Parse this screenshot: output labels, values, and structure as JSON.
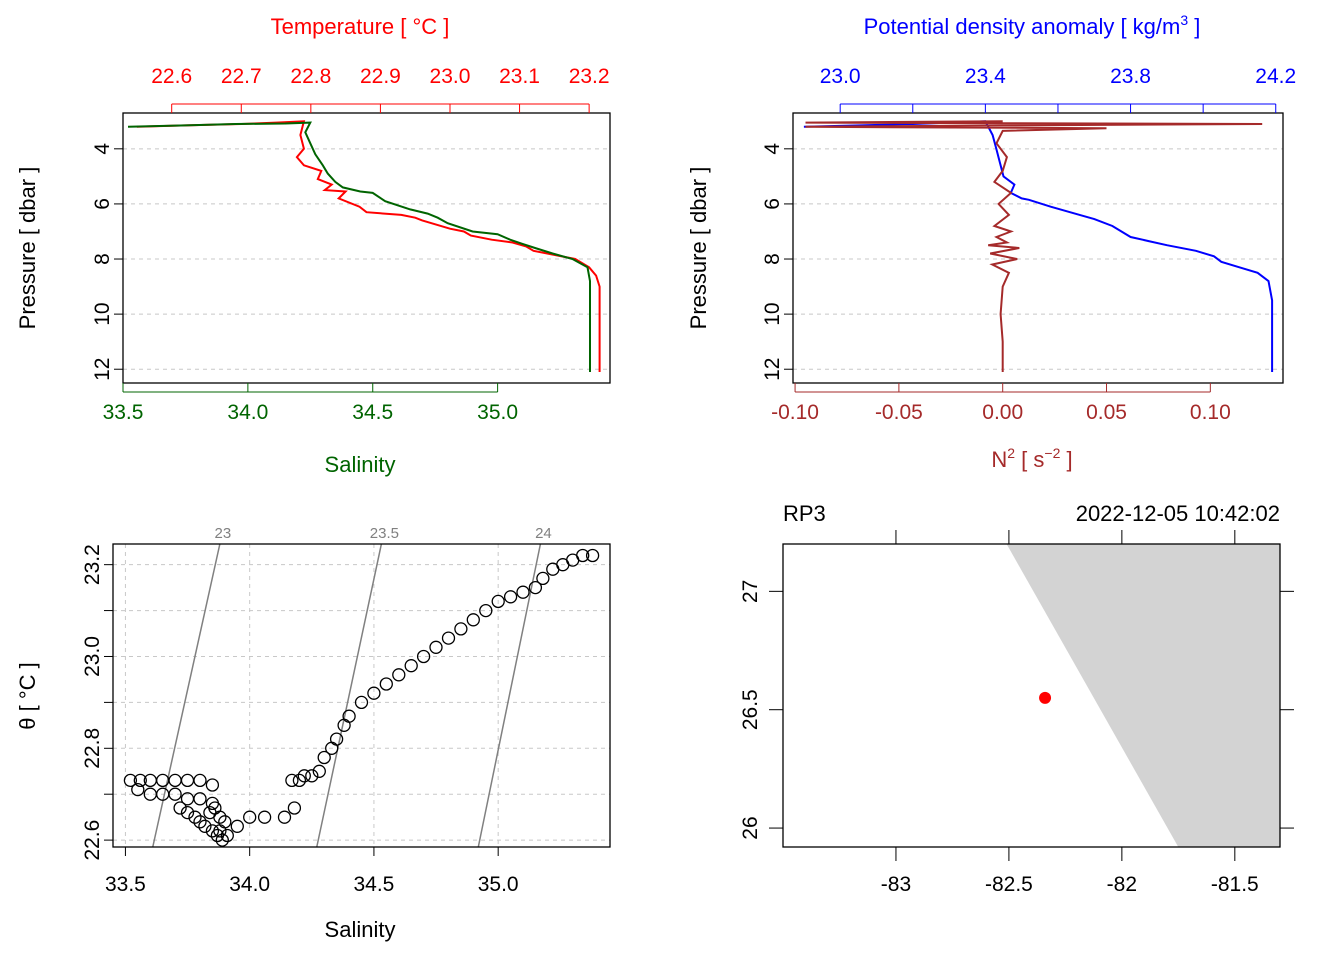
{
  "colors": {
    "temperature": "#ff0000",
    "salinity": "#006400",
    "density": "#0000ff",
    "n2": "#a52a2a",
    "axis": "#000000",
    "grid": "#c8c8c8",
    "isopycnal": "#808080",
    "land": "#d3d3d3",
    "station": "#ff0000"
  },
  "chart_data": [
    {
      "id": "ts_profile",
      "type": "line",
      "title": "",
      "top_axis": {
        "label": "Temperature [ °C ]",
        "ticks": [
          "22.6",
          "22.7",
          "22.8",
          "22.9",
          "23.0",
          "23.1",
          "23.2"
        ],
        "range": [
          22.53,
          23.23
        ]
      },
      "bottom_axis": {
        "label": "Salinity",
        "ticks": [
          "33.5",
          "34.0",
          "34.5",
          "35.0"
        ],
        "range": [
          33.5,
          35.45
        ]
      },
      "y_axis": {
        "label": "Pressure [ dbar ]",
        "ticks": [
          "4",
          "6",
          "8",
          "10",
          "12"
        ],
        "range": [
          12.5,
          2.7
        ],
        "inverted": true
      },
      "series": [
        {
          "name": "Temperature",
          "axis": "top",
          "color": "red",
          "x": [
            22.55,
            22.62,
            22.7,
            22.75,
            22.79,
            22.785,
            22.79,
            22.78,
            22.79,
            22.815,
            22.81,
            22.83,
            22.82,
            22.85,
            22.84,
            22.87,
            22.88,
            22.93,
            22.95,
            22.96,
            23.0,
            23.02,
            23.03,
            23.06,
            23.09,
            23.11,
            23.12,
            23.15,
            23.18,
            23.2,
            23.21,
            23.215,
            23.215,
            23.215
          ],
          "y": [
            3.2,
            3.15,
            3.1,
            3.05,
            3.0,
            3.5,
            4.0,
            4.3,
            4.6,
            4.8,
            5.1,
            5.3,
            5.5,
            5.55,
            5.8,
            6.1,
            6.3,
            6.4,
            6.5,
            6.6,
            6.9,
            7.0,
            7.15,
            7.3,
            7.4,
            7.55,
            7.7,
            7.85,
            8.0,
            8.3,
            8.6,
            9.0,
            10.5,
            12.1
          ]
        },
        {
          "name": "Salinity",
          "axis": "bottom",
          "color": "green",
          "x": [
            33.52,
            33.75,
            33.95,
            34.15,
            34.25,
            34.23,
            34.25,
            34.27,
            34.3,
            34.32,
            34.35,
            34.38,
            34.45,
            34.5,
            34.55,
            34.65,
            34.72,
            34.76,
            34.8,
            34.9,
            35.0,
            35.05,
            35.1,
            35.15,
            35.22,
            35.3,
            35.36,
            35.37,
            35.37,
            35.37
          ],
          "y": [
            3.2,
            3.15,
            3.1,
            3.08,
            3.05,
            3.4,
            3.8,
            4.2,
            4.6,
            4.9,
            5.2,
            5.4,
            5.55,
            5.6,
            5.9,
            6.2,
            6.35,
            6.5,
            6.7,
            7.0,
            7.1,
            7.3,
            7.45,
            7.6,
            7.8,
            8.0,
            8.3,
            8.8,
            10.5,
            12.1
          ]
        }
      ]
    },
    {
      "id": "density_n2_profile",
      "type": "line",
      "title": "",
      "top_axis": {
        "label": "Potential density anomaly [ kg/m",
        "label_sup": "3",
        "label_end": " ]",
        "ticks": [
          "23.0",
          "23.4",
          "23.8",
          "24.2"
        ],
        "range": [
          22.87,
          24.22
        ]
      },
      "bottom_axis": {
        "label": "N",
        "label_sup": "2",
        "label_end": " [ s",
        "label_sup2": "−2",
        "label_end2": " ]",
        "ticks": [
          "-0.10",
          "-0.05",
          "0.00",
          "0.05",
          "0.10"
        ],
        "range": [
          -0.101,
          0.135
        ]
      },
      "y_axis": {
        "label": "Pressure [ dbar ]",
        "ticks": [
          "4",
          "6",
          "8",
          "10",
          "12"
        ],
        "range": [
          12.5,
          2.7
        ],
        "inverted": true
      },
      "series": [
        {
          "name": "Potential density anomaly",
          "axis": "top",
          "color": "blue",
          "x": [
            22.9,
            23.2,
            23.4,
            23.42,
            23.43,
            23.44,
            23.45,
            23.48,
            23.47,
            23.5,
            23.52,
            23.58,
            23.66,
            23.7,
            23.75,
            23.8,
            23.85,
            23.9,
            23.98,
            24.03,
            24.05,
            24.1,
            24.15,
            24.18,
            24.19,
            24.19,
            24.19
          ],
          "y": [
            3.2,
            3.1,
            3.0,
            3.5,
            4.0,
            4.5,
            5.0,
            5.3,
            5.6,
            5.8,
            5.85,
            6.1,
            6.4,
            6.55,
            6.8,
            7.2,
            7.35,
            7.5,
            7.7,
            7.9,
            8.1,
            8.3,
            8.5,
            8.8,
            9.5,
            11.0,
            12.1
          ]
        },
        {
          "name": "N2",
          "axis": "bottom",
          "color": "brown",
          "x": [
            0.0,
            -0.095,
            0.125,
            0.0,
            -0.095,
            0.05,
            0.0,
            -0.003,
            0.002,
            0.0,
            -0.004,
            0.004,
            -0.002,
            0.003,
            -0.004,
            0.004,
            -0.003,
            0.002,
            -0.007,
            0.008,
            -0.006,
            0.007,
            -0.005,
            0.003,
            0.0,
            -0.001,
            0.0,
            0.0
          ],
          "y": [
            3.0,
            3.05,
            3.1,
            3.15,
            3.2,
            3.25,
            3.35,
            3.8,
            4.3,
            4.8,
            5.2,
            5.6,
            6.0,
            6.4,
            6.8,
            7.0,
            7.2,
            7.4,
            7.5,
            7.6,
            7.8,
            8.0,
            8.2,
            8.5,
            9.0,
            10.0,
            11.0,
            12.1
          ]
        }
      ]
    },
    {
      "id": "ts_diagram",
      "type": "scatter",
      "title": "",
      "xlabel": "Salinity",
      "ylabel": "θ [ °C ]",
      "x_ticks": [
        "33.5",
        "34.0",
        "34.5",
        "35.0"
      ],
      "y_ticks": [
        "22.6",
        "22.8",
        "23.0",
        "23.2"
      ],
      "xlim": [
        33.45,
        35.45
      ],
      "ylim": [
        22.585,
        23.245
      ],
      "isopycnals": [
        {
          "label": "23",
          "x": [
            33.61,
            33.88
          ],
          "y": [
            22.585,
            23.245
          ]
        },
        {
          "label": "23.5",
          "x": [
            34.27,
            34.53
          ],
          "y": [
            22.585,
            23.245
          ]
        },
        {
          "label": "24",
          "x": [
            34.92,
            35.17
          ],
          "y": [
            22.585,
            23.245
          ]
        }
      ],
      "points": {
        "salinity": [
          33.52,
          33.56,
          33.6,
          33.65,
          33.7,
          33.75,
          33.8,
          33.85,
          33.55,
          33.6,
          33.65,
          33.7,
          33.75,
          33.8,
          33.85,
          33.72,
          33.75,
          33.78,
          33.8,
          33.82,
          33.85,
          33.87,
          33.88,
          33.9,
          33.84,
          33.86,
          33.88,
          33.89,
          33.91,
          33.95,
          34.0,
          34.06,
          34.14,
          34.18,
          34.17,
          34.2,
          34.25,
          34.22,
          34.28,
          34.3,
          34.33,
          34.35,
          34.38,
          34.4,
          34.45,
          34.5,
          34.55,
          34.6,
          34.65,
          34.7,
          34.75,
          34.8,
          34.85,
          34.9,
          34.95,
          35.0,
          35.05,
          35.1,
          35.15,
          35.18,
          35.22,
          35.26,
          35.3,
          35.34,
          35.38
        ],
        "theta": [
          22.73,
          22.73,
          22.73,
          22.73,
          22.73,
          22.73,
          22.73,
          22.72,
          22.71,
          22.7,
          22.7,
          22.7,
          22.69,
          22.69,
          22.68,
          22.67,
          22.66,
          22.65,
          22.64,
          22.63,
          22.62,
          22.61,
          22.62,
          22.64,
          22.66,
          22.67,
          22.65,
          22.6,
          22.61,
          22.63,
          22.65,
          22.65,
          22.65,
          22.67,
          22.73,
          22.73,
          22.74,
          22.74,
          22.75,
          22.78,
          22.8,
          22.82,
          22.85,
          22.87,
          22.9,
          22.92,
          22.94,
          22.96,
          22.98,
          23.0,
          23.02,
          23.04,
          23.06,
          23.08,
          23.1,
          23.12,
          23.13,
          23.14,
          23.15,
          23.17,
          23.19,
          23.2,
          23.21,
          23.22,
          23.22
        ]
      }
    },
    {
      "id": "station_map",
      "type": "scatter",
      "station_name": "RP3",
      "datetime": "2022-12-05 10:42:02",
      "x_ticks": [
        "-83",
        "-82.5",
        "-82",
        "-81.5"
      ],
      "y_ticks": [
        "26",
        "26.5",
        "27"
      ],
      "xlim": [
        -83.5,
        -81.3
      ],
      "ylim": [
        25.92,
        27.2
      ],
      "land_polygon": {
        "lon": [
          -82.51,
          -81.3,
          -81.3,
          -81.75
        ],
        "lat": [
          27.2,
          27.2,
          25.92,
          25.92
        ]
      },
      "station": {
        "lon": -82.34,
        "lat": 26.55
      }
    }
  ]
}
